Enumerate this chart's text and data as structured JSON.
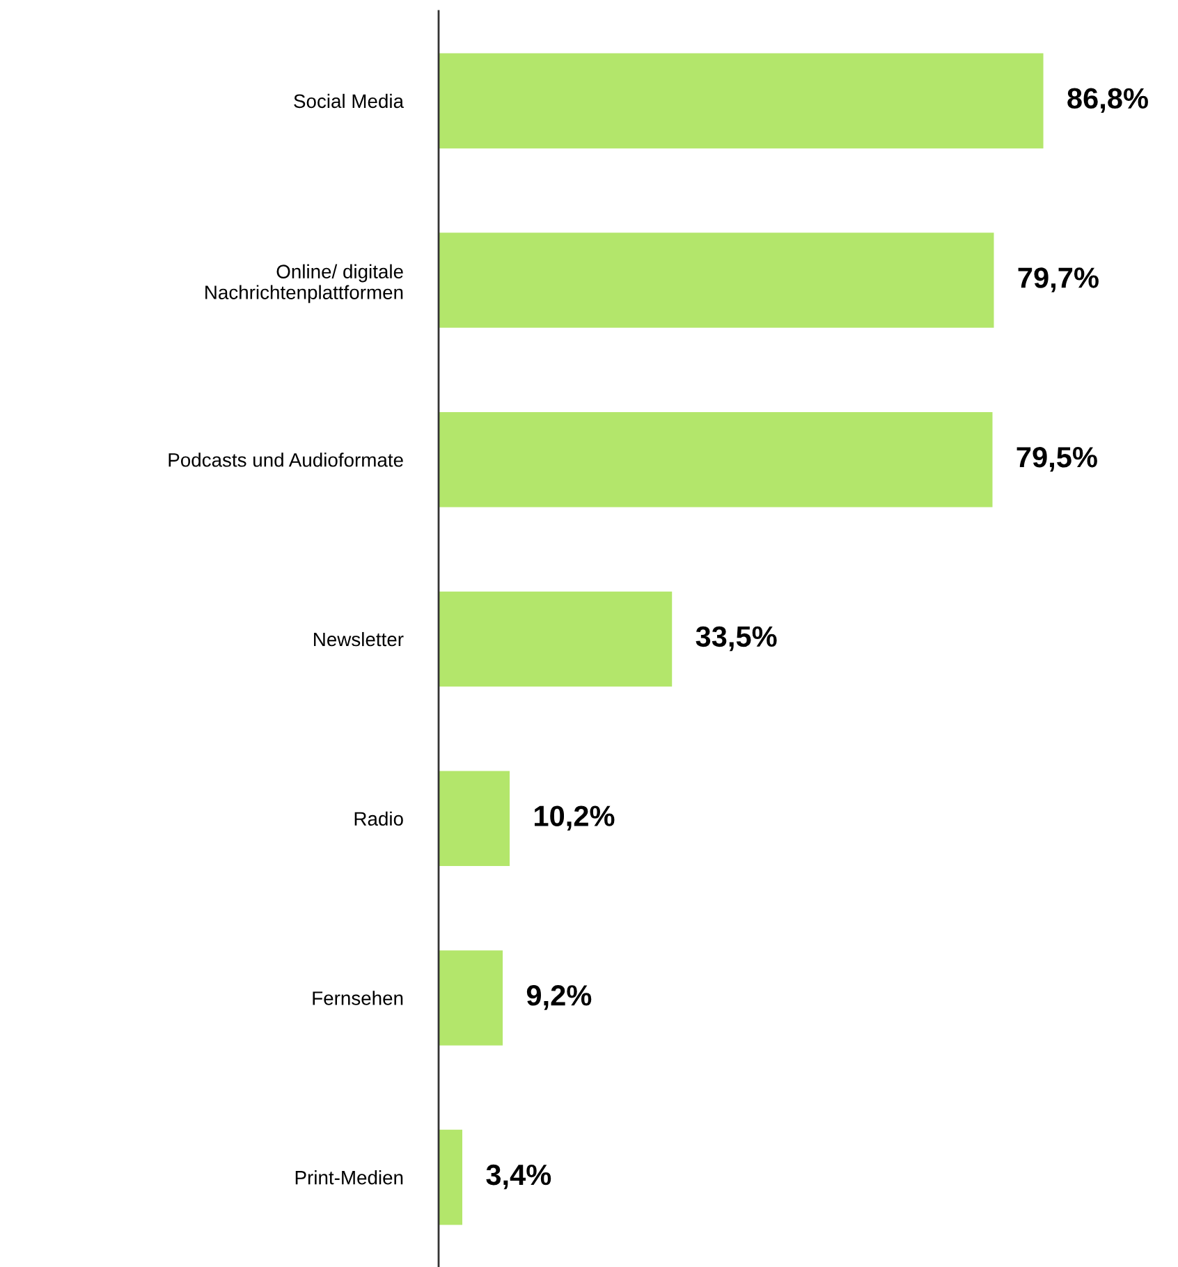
{
  "chart_data": {
    "type": "bar",
    "orientation": "horizontal",
    "categories": [
      "Social Media",
      "Online/ digitale\nNachrichtenplattformen",
      "Podcasts und Audioformate",
      "Newsletter",
      "Radio",
      "Fernsehen",
      "Print-Medien"
    ],
    "values": [
      86.8,
      79.7,
      79.5,
      33.5,
      10.2,
      9.2,
      3.4
    ],
    "value_labels": [
      "86,8%",
      "79,7%",
      "79,5%",
      "33,5%",
      "10,2%",
      "9,2%",
      "3,4%"
    ],
    "color": "#b3e66b",
    "tick_labels": "y",
    "grid": false,
    "legend": false
  }
}
